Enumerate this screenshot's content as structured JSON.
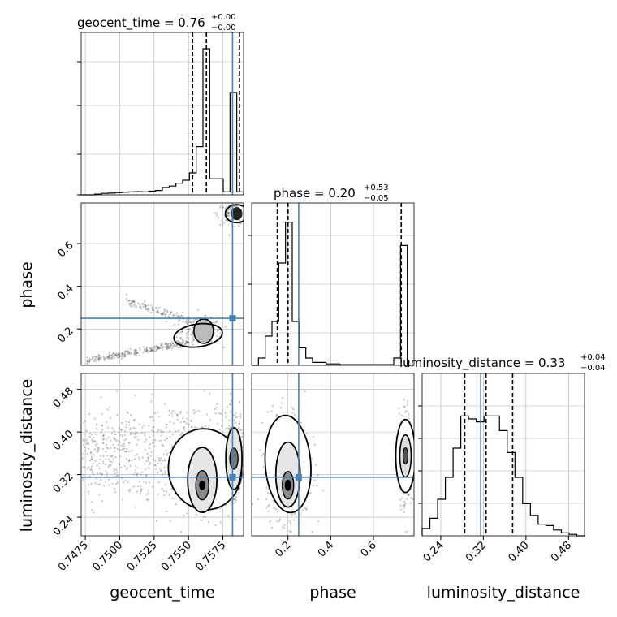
{
  "chart_data": {
    "type": "corner",
    "parameters": [
      "geocent_time",
      "phase",
      "luminosity_distance"
    ],
    "axis_labels": {
      "geocent_time": "geocent_time",
      "phase": "phase",
      "luminosity_distance": "luminosity_distance"
    },
    "titles": {
      "geocent_time": {
        "main": "geocent_time = 0.76",
        "sup": "+0.00",
        "sub": "−0.00"
      },
      "phase": {
        "main": "phase = 0.20",
        "sup": "+0.53",
        "sub": "−0.05"
      },
      "luminosity_distance": {
        "main": "luminosity_distance = 0.33",
        "sup": "+0.04",
        "sub": "−0.04"
      }
    },
    "ranges": {
      "geocent_time": [
        0.7472,
        0.759
      ],
      "phase": [
        0.03,
        0.79
      ],
      "luminosity_distance": [
        0.205,
        0.51
      ]
    },
    "ticks": {
      "geocent_time": [
        {
          "v": 0.7475,
          "label": "0.7475"
        },
        {
          "v": 0.75,
          "label": "0.7500"
        },
        {
          "v": 0.7525,
          "label": "0.7525"
        },
        {
          "v": 0.755,
          "label": "0.7550"
        },
        {
          "v": 0.7575,
          "label": "0.7575"
        }
      ],
      "phase": [
        {
          "v": 0.2,
          "label": "0.2"
        },
        {
          "v": 0.4,
          "label": "0.4"
        },
        {
          "v": 0.6,
          "label": "0.6"
        }
      ],
      "luminosity_distance": [
        {
          "v": 0.24,
          "label": "0.24"
        },
        {
          "v": 0.32,
          "label": "0.32"
        },
        {
          "v": 0.4,
          "label": "0.40"
        },
        {
          "v": 0.48,
          "label": "0.48"
        }
      ]
    },
    "truths": {
      "geocent_time": 0.7582,
      "phase": 0.25,
      "luminosity_distance": 0.315
    },
    "quantiles": {
      "geocent_time": [
        0.7553,
        0.7563,
        0.7587
      ],
      "phase": [
        0.15,
        0.2,
        0.73
      ],
      "luminosity_distance": [
        0.285,
        0.325,
        0.375
      ]
    },
    "histograms": {
      "geocent_time": [
        0,
        0,
        0.005,
        0.01,
        0.012,
        0.015,
        0.018,
        0.02,
        0.022,
        0.02,
        0.025,
        0.03,
        0.05,
        0.06,
        0.08,
        0.1,
        0.15,
        0.33,
        1.0,
        0.11,
        0.11,
        0.02,
        0.7,
        0.02
      ],
      "phase": [
        0,
        0.05,
        0.2,
        0.3,
        0.7,
        0.98,
        0.3,
        0.12,
        0.05,
        0.02,
        0.02,
        0.01,
        0.01,
        0.005,
        0.005,
        0.005,
        0.005,
        0.005,
        0.005,
        0.005,
        0.005,
        0.05,
        0.82,
        0
      ],
      "luminosity_distance": [
        0.05,
        0.12,
        0.25,
        0.4,
        0.6,
        0.82,
        0.8,
        0.78,
        0.82,
        0.82,
        0.72,
        0.57,
        0.4,
        0.22,
        0.14,
        0.08,
        0.07,
        0.04,
        0.02,
        0.01,
        0
      ]
    },
    "annotations": {
      "geocent_time_hist_yticks": [
        0.0,
        0.25,
        0.55,
        0.82
      ],
      "phase_hist_yticks": [
        0.2,
        0.5,
        0.8
      ],
      "luminosity_distance_hist_yticks": [
        0.2,
        0.4,
        0.6,
        0.8
      ]
    }
  }
}
